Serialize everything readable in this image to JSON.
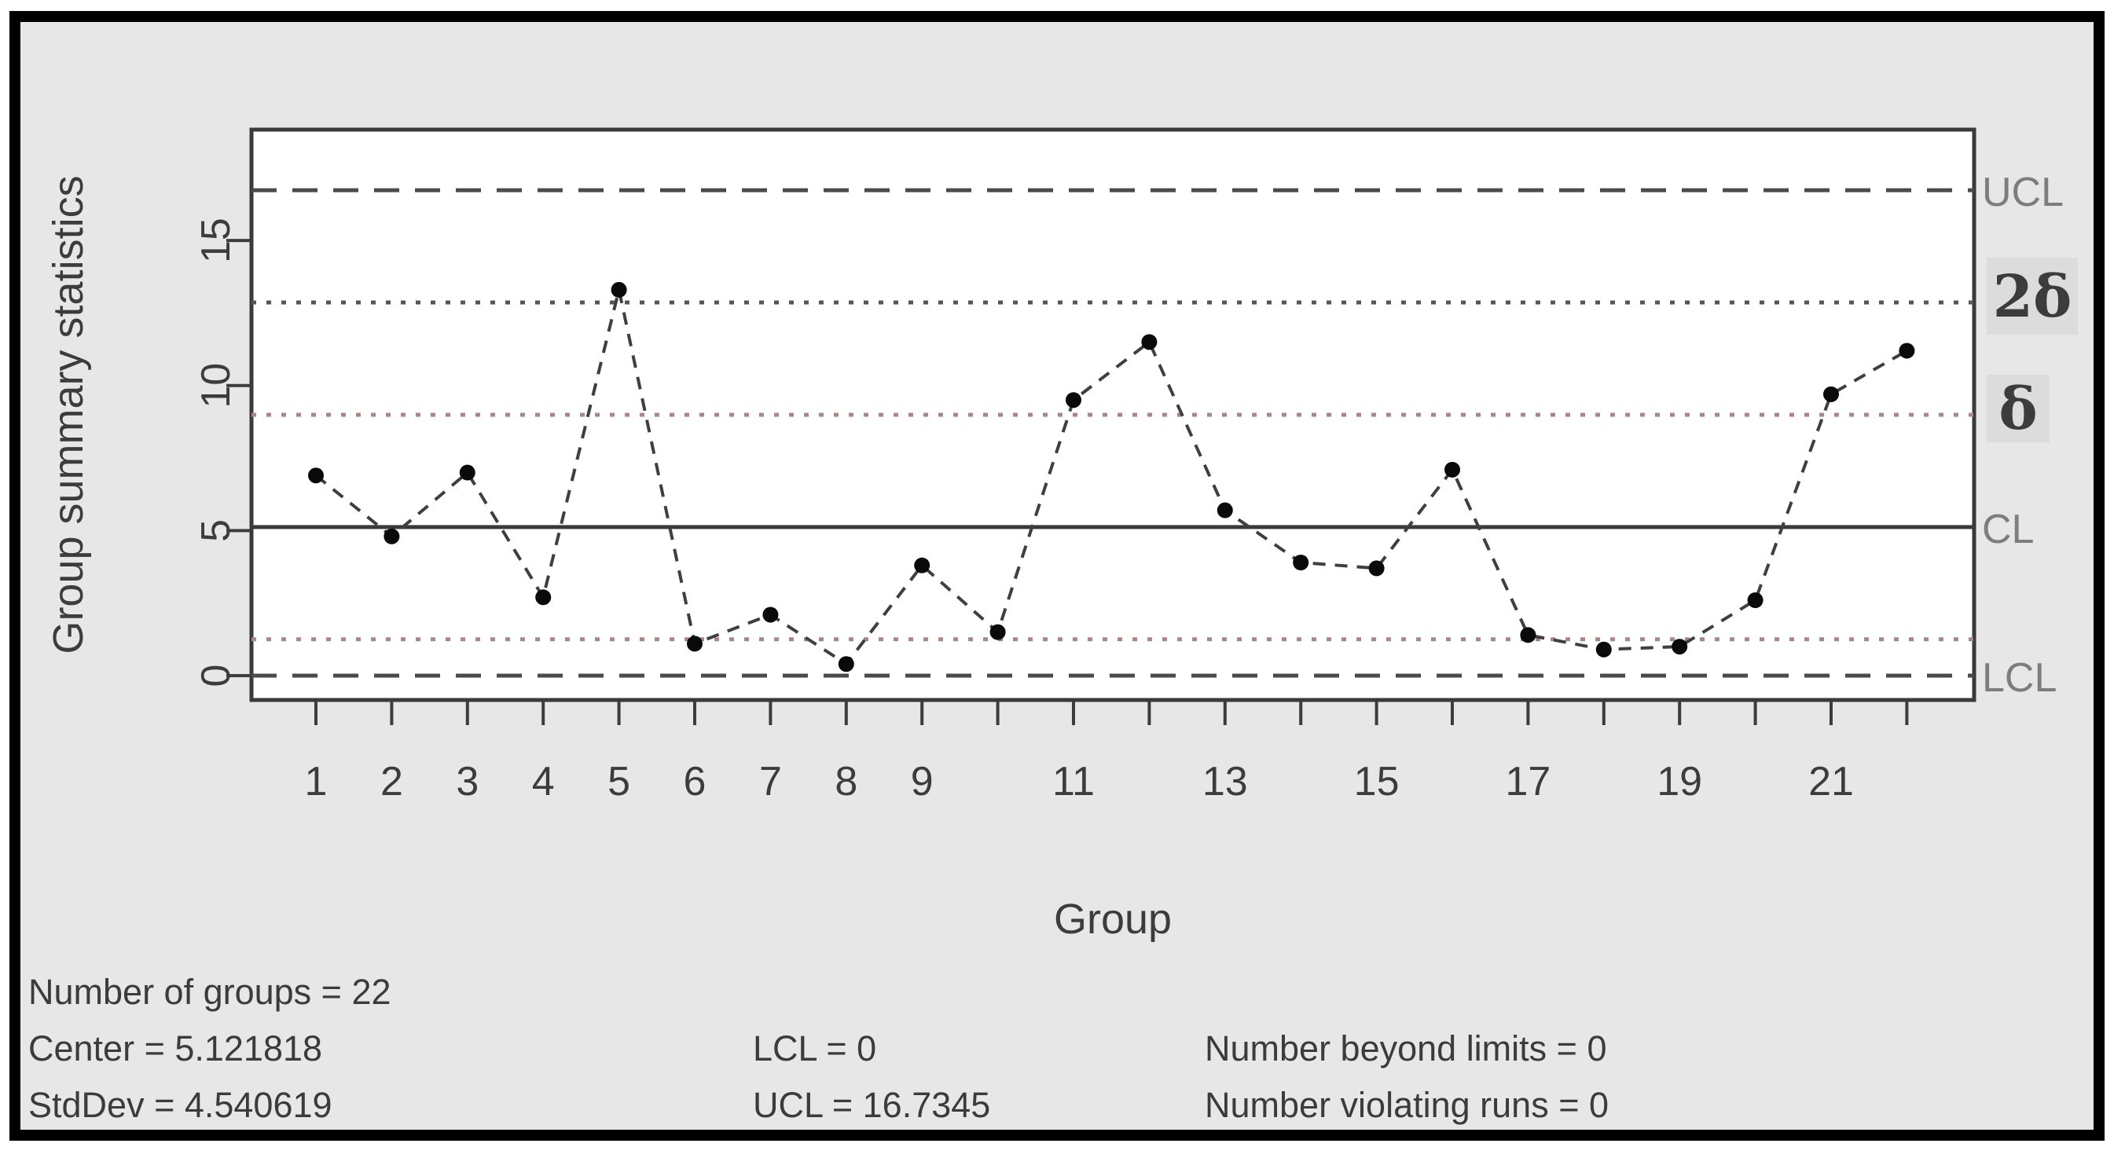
{
  "figure": {
    "background_color": "#e7e7e7",
    "frame_color": "#000000",
    "plot_background": "#ffffff",
    "plot_border_color": "#3a3a3a",
    "text_color": "#3c3c3c",
    "limit_label_color": "#7d7d7d",
    "sigma_box_color": "#dcdcdc"
  },
  "chart_data": {
    "type": "line",
    "title": "",
    "xlabel": "Group",
    "ylabel": "Group summary statistics",
    "x": [
      1,
      2,
      3,
      4,
      5,
      6,
      7,
      8,
      9,
      10,
      11,
      12,
      13,
      14,
      15,
      16,
      17,
      18,
      19,
      20,
      21,
      22
    ],
    "values": [
      6.9,
      4.8,
      7.0,
      2.7,
      13.3,
      1.1,
      2.1,
      0.4,
      3.8,
      1.5,
      9.5,
      11.5,
      5.7,
      3.9,
      3.7,
      7.1,
      1.4,
      0.9,
      1.0,
      2.6,
      9.7,
      11.2
    ],
    "x_tick_labels": [
      "1",
      "2",
      "3",
      "4",
      "5",
      "6",
      "7",
      "8",
      "9",
      "",
      "11",
      "",
      "13",
      "",
      "15",
      "",
      "17",
      "",
      "19",
      "",
      "21",
      ""
    ],
    "y_ticks": [
      0,
      5,
      10,
      15
    ],
    "ylim": [
      -0.9,
      18.8
    ],
    "grid": false,
    "legend_position": "none",
    "center": 5.121818,
    "std_dev": 4.540619,
    "lcl": 0,
    "ucl": 16.7345,
    "number_beyond_limits": 0,
    "number_violating_runs": 0,
    "point_color": "#0a0a0a",
    "line_color": "#3f3f3f",
    "reference_lines": [
      {
        "name": "ucl",
        "value": 16.7345,
        "style": "dashed",
        "color": "#4a4a4a",
        "label": "UCL",
        "label_style": "plain"
      },
      {
        "name": "two-delta",
        "value": 12.8635,
        "style": "dotted",
        "color": "#55555f",
        "label": "2δ",
        "label_style": "boxed"
      },
      {
        "name": "delta-upper",
        "value": 8.9927,
        "style": "dotted",
        "color": "#aa8686",
        "label": "δ",
        "label_style": "boxed"
      },
      {
        "name": "cl",
        "value": 5.121818,
        "style": "solid",
        "color": "#3a3a3a",
        "label": "CL",
        "label_style": "plain"
      },
      {
        "name": "delta-lower",
        "value": 1.251,
        "style": "dotted",
        "color": "#aa8686",
        "label": "",
        "label_style": "none"
      },
      {
        "name": "lcl",
        "value": 0,
        "style": "dashed",
        "color": "#4a4a4a",
        "label": "LCL",
        "label_style": "plain"
      }
    ]
  },
  "footer": {
    "col1": {
      "line1": "Number of groups = 22",
      "line2": "Center = 5.121818",
      "line3": "StdDev = 4.540619"
    },
    "col2": {
      "line1": "LCL = 0",
      "line2": "UCL = 16.7345"
    },
    "col3": {
      "line1": "Number beyond limits = 0",
      "line2": "Number violating runs = 0"
    }
  }
}
